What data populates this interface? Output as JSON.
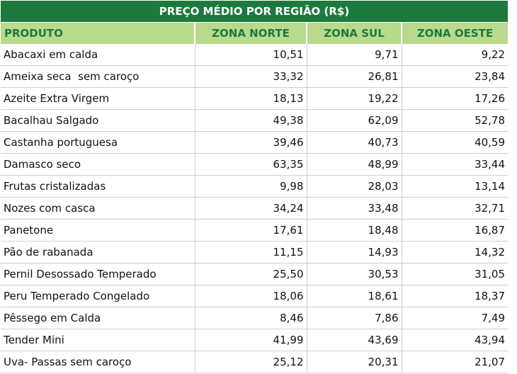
{
  "table": {
    "title": "PREÇO MÉDIO POR REGIÃO (R$)",
    "columns": [
      "PRODUTO",
      "ZONA NORTE",
      "ZONA SUL",
      "ZONA OESTE"
    ],
    "rows": [
      [
        "Abacaxi em calda",
        "10,51",
        "9,71",
        "9,22"
      ],
      [
        "Ameixa seca  sem caroço",
        "33,32",
        "26,81",
        "23,84"
      ],
      [
        "Azeite Extra Virgem",
        "18,13",
        "19,22",
        "17,26"
      ],
      [
        "Bacalhau Salgado",
        "49,38",
        "62,09",
        "52,78"
      ],
      [
        "Castanha portuguesa",
        "39,46",
        "40,73",
        "40,59"
      ],
      [
        "Damasco seco",
        "63,35",
        "48,99",
        "33,44"
      ],
      [
        "Frutas cristalizadas",
        "9,98",
        "28,03",
        "13,14"
      ],
      [
        "Nozes com casca",
        "34,24",
        "33,48",
        "32,71"
      ],
      [
        "Panetone",
        "17,61",
        "18,48",
        "16,87"
      ],
      [
        "Pão de rabanada",
        "11,15",
        "14,93",
        "14,32"
      ],
      [
        "Pernil Desossado Temperado",
        "25,50",
        "30,53",
        "31,05"
      ],
      [
        "Peru Temperado Congelado",
        "18,06",
        "18,61",
        "18,37"
      ],
      [
        "Pêssego em Calda",
        "8,46",
        "7,86",
        "7,49"
      ],
      [
        "Tender Mini",
        "41,99",
        "43,69",
        "43,94"
      ],
      [
        "Uva- Passas sem caroço",
        "25,12",
        "20,31",
        "21,07"
      ]
    ]
  },
  "colors": {
    "title_background": "#1d7a3e",
    "header_background": "#b9d98c",
    "header_text": "#1d7a3e",
    "row_border": "#cfcfcf"
  }
}
